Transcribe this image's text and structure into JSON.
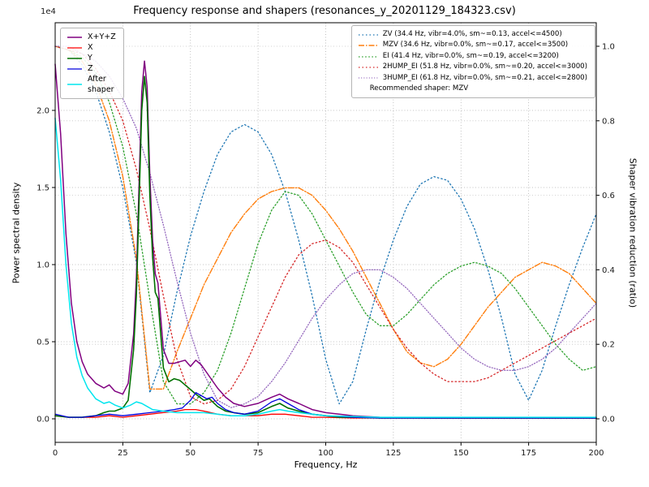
{
  "chart_data": {
    "type": "line",
    "title": "Frequency response and shapers (resonances_y_20201129_184323.csv)",
    "xlabel": "Frequency, Hz",
    "ylabel_left": "Power spectral density",
    "ylabel_right": "Shaper vibration reduction (ratio)",
    "y_left_offset": "1e4",
    "xlim": [
      0,
      200
    ],
    "x_ticks": [
      0,
      25,
      50,
      75,
      100,
      125,
      150,
      175,
      200
    ],
    "y_left_ticks": [
      0,
      0.5,
      1,
      1.5,
      2
    ],
    "y_right_ticks": [
      0,
      0.2,
      0.4,
      0.6,
      0.8,
      1
    ],
    "grid": true,
    "legend_note": "Recommended shaper: MZV",
    "recommended_shaper": "MZV",
    "psd_series": [
      {
        "name": "X+Y+Z",
        "color": "#800080",
        "width": 1.5,
        "dash": "",
        "x": [
          0,
          2,
          4,
          6,
          8,
          10,
          12,
          15,
          18,
          20,
          22,
          25,
          27,
          29,
          30,
          31,
          32,
          33,
          34,
          35,
          36,
          37,
          38,
          39,
          40,
          42,
          44,
          46,
          48,
          50,
          52,
          54,
          56,
          58,
          60,
          63,
          66,
          70,
          75,
          80,
          83,
          86,
          90,
          95,
          100,
          105,
          110,
          120,
          140,
          160,
          180,
          200
        ],
        "y": [
          2.3,
          1.85,
          1.2,
          0.75,
          0.5,
          0.37,
          0.29,
          0.23,
          0.2,
          0.22,
          0.18,
          0.16,
          0.23,
          0.55,
          0.92,
          1.52,
          2.12,
          2.32,
          2.15,
          1.58,
          1.16,
          0.94,
          0.88,
          0.66,
          0.45,
          0.36,
          0.36,
          0.37,
          0.38,
          0.34,
          0.38,
          0.35,
          0.3,
          0.25,
          0.2,
          0.14,
          0.1,
          0.08,
          0.1,
          0.14,
          0.16,
          0.13,
          0.1,
          0.06,
          0.04,
          0.03,
          0.02,
          0.01,
          0.005,
          0.005,
          0.005,
          0.005
        ]
      },
      {
        "name": "X",
        "color": "#ff0000",
        "width": 1.3,
        "dash": "",
        "x": [
          0,
          5,
          10,
          15,
          20,
          25,
          30,
          35,
          40,
          45,
          48,
          52,
          55,
          60,
          65,
          70,
          75,
          80,
          85,
          90,
          95,
          100,
          110,
          120,
          140,
          160,
          180,
          200
        ],
        "y": [
          0.02,
          0.01,
          0.01,
          0.01,
          0.02,
          0.01,
          0.02,
          0.03,
          0.04,
          0.05,
          0.06,
          0.06,
          0.05,
          0.03,
          0.02,
          0.02,
          0.02,
          0.03,
          0.03,
          0.02,
          0.01,
          0.01,
          0.005,
          0.005,
          0.005,
          0.005,
          0.005,
          0.005
        ]
      },
      {
        "name": "Y",
        "color": "#007000",
        "width": 1.6,
        "dash": "",
        "x": [
          0,
          5,
          10,
          15,
          18,
          20,
          22,
          25,
          27,
          29,
          30,
          31,
          32,
          33,
          34,
          35,
          36,
          37,
          38,
          39,
          40,
          42,
          44,
          46,
          48,
          50,
          52,
          55,
          57,
          60,
          63,
          66,
          70,
          75,
          80,
          83,
          86,
          90,
          95,
          100,
          105,
          110,
          120,
          140,
          160,
          180,
          200
        ],
        "y": [
          0.02,
          0.01,
          0.01,
          0.02,
          0.04,
          0.05,
          0.05,
          0.07,
          0.12,
          0.45,
          0.8,
          1.4,
          2.0,
          2.22,
          2.05,
          1.45,
          1.05,
          0.82,
          0.78,
          0.55,
          0.33,
          0.24,
          0.26,
          0.25,
          0.22,
          0.19,
          0.16,
          0.12,
          0.13,
          0.08,
          0.05,
          0.04,
          0.03,
          0.04,
          0.08,
          0.1,
          0.07,
          0.05,
          0.03,
          0.02,
          0.01,
          0.01,
          0.005,
          0.005,
          0.005,
          0.005,
          0.005
        ]
      },
      {
        "name": "Z",
        "color": "#0000dd",
        "width": 1.3,
        "dash": "",
        "x": [
          0,
          5,
          10,
          15,
          20,
          25,
          30,
          35,
          40,
          44,
          47,
          50,
          52,
          54,
          56,
          58,
          60,
          63,
          66,
          70,
          75,
          80,
          83,
          86,
          90,
          95,
          100,
          105,
          110,
          120,
          140,
          160,
          180,
          200
        ],
        "y": [
          0.03,
          0.01,
          0.01,
          0.02,
          0.03,
          0.02,
          0.03,
          0.04,
          0.05,
          0.06,
          0.07,
          0.12,
          0.17,
          0.15,
          0.13,
          0.14,
          0.1,
          0.06,
          0.04,
          0.03,
          0.05,
          0.11,
          0.13,
          0.1,
          0.06,
          0.03,
          0.02,
          0.015,
          0.01,
          0.005,
          0.005,
          0.005,
          0.005,
          0.005
        ]
      },
      {
        "name": "After\nshaper",
        "color": "#00e5ee",
        "width": 1.5,
        "dash": "",
        "x": [
          0,
          2,
          4,
          6,
          8,
          10,
          12,
          15,
          18,
          20,
          22,
          25,
          28,
          30,
          32,
          34,
          36,
          40,
          45,
          50,
          55,
          60,
          65,
          70,
          75,
          80,
          83,
          86,
          90,
          95,
          100,
          110,
          120,
          140,
          160,
          180,
          200
        ],
        "y": [
          1.95,
          1.55,
          1.0,
          0.62,
          0.4,
          0.28,
          0.2,
          0.13,
          0.1,
          0.11,
          0.09,
          0.07,
          0.09,
          0.11,
          0.1,
          0.08,
          0.06,
          0.05,
          0.04,
          0.04,
          0.04,
          0.03,
          0.02,
          0.02,
          0.03,
          0.05,
          0.06,
          0.05,
          0.04,
          0.03,
          0.02,
          0.015,
          0.01,
          0.01,
          0.01,
          0.01,
          0.01
        ]
      }
    ],
    "shaper_x": [
      0,
      5,
      10,
      15,
      20,
      25,
      30,
      35,
      40,
      45,
      50,
      55,
      60,
      65,
      70,
      75,
      80,
      85,
      90,
      95,
      100,
      105,
      110,
      115,
      120,
      125,
      130,
      135,
      140,
      145,
      150,
      155,
      160,
      165,
      170,
      175,
      180,
      185,
      190,
      195,
      200
    ],
    "shaper_series": [
      {
        "name": "ZV",
        "label": "ZV (34.4 Hz, vibr=4.0%, sm~=0.13, accel<=4500)",
        "color": "#1f77b4",
        "width": 1.3,
        "dash": "1.5 3",
        "y": [
          1.0,
          0.99,
          0.95,
          0.88,
          0.77,
          0.62,
          0.42,
          0.07,
          0.17,
          0.34,
          0.49,
          0.61,
          0.71,
          0.77,
          0.79,
          0.77,
          0.71,
          0.61,
          0.48,
          0.33,
          0.16,
          0.04,
          0.1,
          0.24,
          0.37,
          0.48,
          0.57,
          0.63,
          0.65,
          0.64,
          0.59,
          0.51,
          0.4,
          0.27,
          0.12,
          0.05,
          0.13,
          0.25,
          0.36,
          0.46,
          0.55
        ]
      },
      {
        "name": "MZV",
        "label": "MZV (34.6 Hz, vibr=0.0%, sm~=0.17, accel<=3500)",
        "color": "#ff7f0e",
        "width": 1.4,
        "dash": "7 2 1.5 2",
        "y": [
          1.0,
          0.99,
          0.96,
          0.9,
          0.8,
          0.65,
          0.43,
          0.08,
          0.08,
          0.18,
          0.27,
          0.36,
          0.43,
          0.5,
          0.55,
          0.59,
          0.61,
          0.62,
          0.62,
          0.6,
          0.56,
          0.51,
          0.45,
          0.38,
          0.31,
          0.24,
          0.18,
          0.15,
          0.14,
          0.16,
          0.2,
          0.25,
          0.3,
          0.34,
          0.38,
          0.4,
          0.42,
          0.41,
          0.39,
          0.35,
          0.31
        ]
      },
      {
        "name": "EI",
        "label": "EI (41.4 Hz, vibr=0.0%, sm~=0.19, accel<=3200)",
        "color": "#2ca02c",
        "width": 1.3,
        "dash": "1.5 2.6",
        "y": [
          1.0,
          0.99,
          0.97,
          0.93,
          0.85,
          0.73,
          0.55,
          0.32,
          0.1,
          0.04,
          0.04,
          0.07,
          0.13,
          0.23,
          0.35,
          0.47,
          0.56,
          0.61,
          0.6,
          0.55,
          0.48,
          0.41,
          0.34,
          0.28,
          0.25,
          0.25,
          0.28,
          0.32,
          0.36,
          0.39,
          0.41,
          0.42,
          0.41,
          0.39,
          0.35,
          0.3,
          0.25,
          0.2,
          0.16,
          0.13,
          0.14
        ]
      },
      {
        "name": "2HUMP_EI",
        "label": "2HUMP_EI (51.8 Hz, vibr=0.0%, sm~=0.20, accel<=3000)",
        "color": "#d62728",
        "width": 1.3,
        "dash": "1.5 3",
        "y": [
          1.0,
          0.99,
          0.98,
          0.94,
          0.88,
          0.8,
          0.67,
          0.51,
          0.33,
          0.16,
          0.06,
          0.04,
          0.05,
          0.08,
          0.14,
          0.22,
          0.3,
          0.38,
          0.44,
          0.47,
          0.48,
          0.46,
          0.42,
          0.36,
          0.3,
          0.24,
          0.19,
          0.15,
          0.12,
          0.1,
          0.1,
          0.1,
          0.11,
          0.13,
          0.15,
          0.17,
          0.19,
          0.21,
          0.23,
          0.25,
          0.27
        ]
      },
      {
        "name": "3HUMP_EI",
        "label": "3HUMP_EI (61.8 Hz, vibr=0.0%, sm~=0.21, accel<=2800)",
        "color": "#9467bd",
        "width": 1.3,
        "dash": "1 2.2",
        "y": [
          1.0,
          1.0,
          0.98,
          0.96,
          0.92,
          0.86,
          0.78,
          0.66,
          0.52,
          0.37,
          0.23,
          0.12,
          0.05,
          0.03,
          0.04,
          0.06,
          0.1,
          0.15,
          0.21,
          0.27,
          0.32,
          0.36,
          0.39,
          0.4,
          0.4,
          0.38,
          0.35,
          0.31,
          0.27,
          0.23,
          0.19,
          0.16,
          0.14,
          0.13,
          0.13,
          0.14,
          0.16,
          0.19,
          0.23,
          0.27,
          0.31
        ]
      }
    ]
  }
}
